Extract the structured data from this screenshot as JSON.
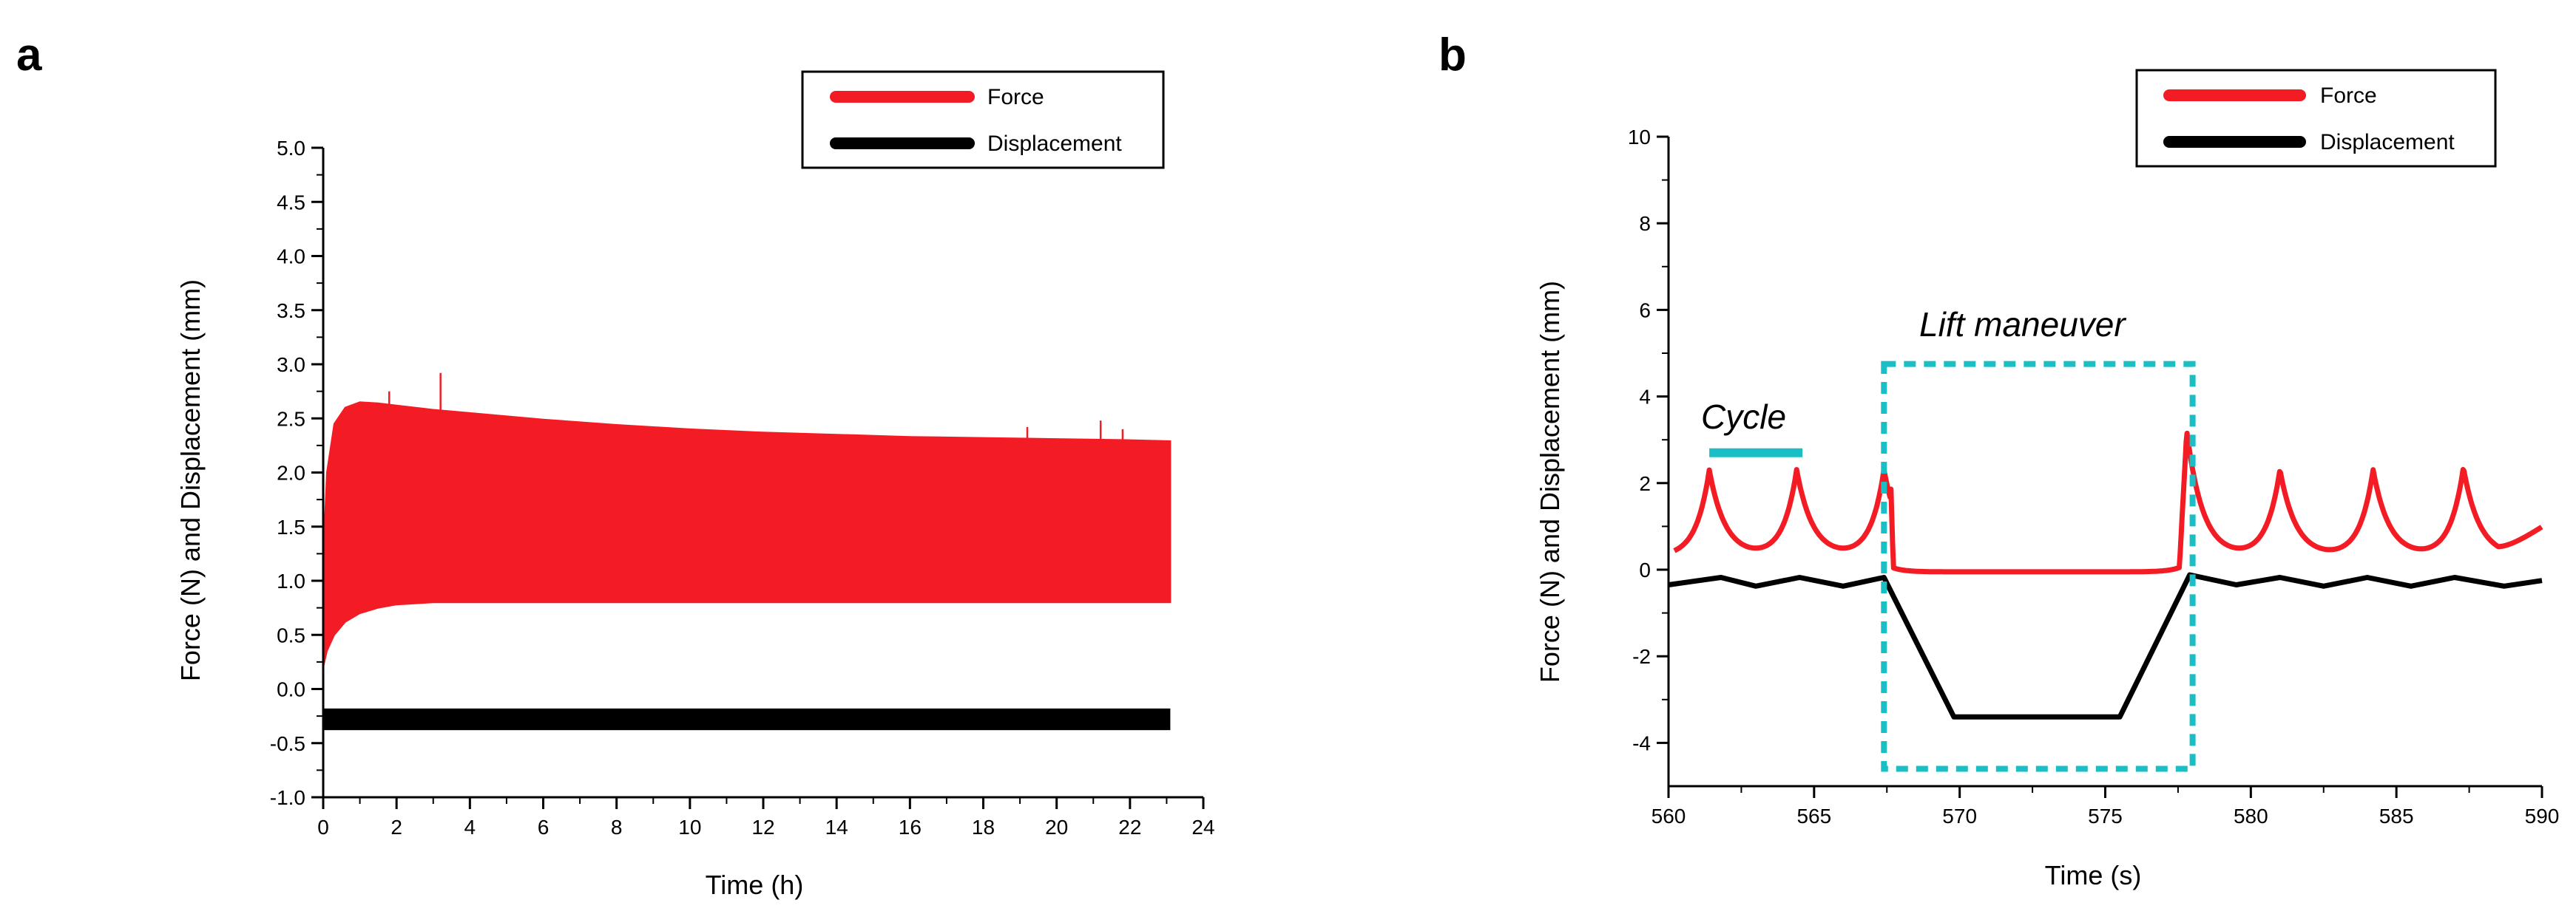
{
  "colors": {
    "force": "#f41c24",
    "displacement": "#000000",
    "annotation": "#19bfc4"
  },
  "panels": {
    "a": {
      "letter": "a"
    },
    "b": {
      "letter": "b"
    }
  },
  "chart_data": [
    {
      "panel": "a",
      "type": "area",
      "title": "",
      "xlabel": "Time (h)",
      "ylabel": "Force (N) and Displacement (mm)",
      "xlim": [
        0,
        24
      ],
      "ylim": [
        -1.0,
        5.0
      ],
      "x_ticks": [
        0,
        2,
        4,
        6,
        8,
        10,
        12,
        14,
        16,
        18,
        20,
        22,
        24
      ],
      "y_ticks": [
        -1.0,
        -0.5,
        0.0,
        0.5,
        1.0,
        1.5,
        2.0,
        2.5,
        3.0,
        3.5,
        4.0,
        4.5,
        5.0
      ],
      "legend_position": "top-right",
      "series": [
        {
          "name": "Force",
          "kind": "band",
          "x": [
            0,
            0.1,
            0.3,
            0.6,
            1.0,
            1.5,
            2,
            3,
            4,
            6,
            8,
            10,
            12,
            14,
            16,
            18,
            20,
            22,
            23.1
          ],
          "upper": [
            1.2,
            2.0,
            2.45,
            2.6,
            2.65,
            2.64,
            2.62,
            2.58,
            2.55,
            2.49,
            2.44,
            2.4,
            2.37,
            2.35,
            2.33,
            2.32,
            2.31,
            2.3,
            2.29
          ],
          "lower": [
            0.2,
            0.35,
            0.5,
            0.62,
            0.7,
            0.75,
            0.78,
            0.8,
            0.8,
            0.8,
            0.8,
            0.8,
            0.8,
            0.8,
            0.8,
            0.8,
            0.8,
            0.8,
            0.8
          ],
          "spikes": [
            {
              "x": 1.8,
              "y": 2.75
            },
            {
              "x": 3.2,
              "y": 2.92
            },
            {
              "x": 19.2,
              "y": 2.42
            },
            {
              "x": 21.2,
              "y": 2.48
            },
            {
              "x": 21.8,
              "y": 2.4
            }
          ]
        },
        {
          "name": "Displacement",
          "kind": "band",
          "x": [
            0,
            23.1
          ],
          "upper": [
            -0.18,
            -0.18
          ],
          "lower": [
            -0.38,
            -0.38
          ]
        }
      ]
    },
    {
      "panel": "b",
      "type": "line",
      "title": "",
      "xlabel": "Time (s)",
      "ylabel": "Force (N) and Displacement (mm)",
      "xlim": [
        560,
        590
      ],
      "ylim": [
        -5,
        10
      ],
      "x_ticks": [
        560,
        565,
        570,
        575,
        580,
        585,
        590
      ],
      "y_ticks": [
        -4,
        -2,
        0,
        2,
        4,
        6,
        8,
        10
      ],
      "legend_position": "top-right",
      "annotations": {
        "cycle_label": "Cycle",
        "lift_label": "Lift maneuver",
        "cycle_bar_x": [
          561.4,
          564.6
        ],
        "cycle_bar_y": 2.7,
        "lift_box_x": [
          567.4,
          578.0
        ],
        "lift_box_y": [
          -4.6,
          4.75
        ]
      },
      "series": [
        {
          "name": "Force",
          "peaks": [
            561.4,
            564.4,
            567.4,
            577.8,
            581.0,
            584.2,
            587.3
          ],
          "peak_values": [
            2.3,
            2.3,
            2.3,
            3.2,
            2.3,
            2.3,
            2.35
          ],
          "baseline": 0.3,
          "lift_level": -0.05,
          "x_points": [
            560,
            567.5,
            567.8,
            577.6,
            577.9,
            590
          ],
          "y_points": [
            0.3,
            2.3,
            0.0,
            0.1,
            3.2,
            1.1
          ]
        },
        {
          "name": "Displacement",
          "x": [
            560,
            561.8,
            563,
            564.5,
            566,
            567.4,
            569.8,
            575.5,
            577.9,
            579.5,
            581,
            582.5,
            584,
            585.5,
            587,
            588.7,
            590
          ],
          "y": [
            -0.35,
            -0.18,
            -0.38,
            -0.18,
            -0.38,
            -0.18,
            -3.4,
            -3.4,
            -0.12,
            -0.35,
            -0.18,
            -0.38,
            -0.18,
            -0.38,
            -0.18,
            -0.38,
            -0.25
          ]
        }
      ]
    }
  ]
}
